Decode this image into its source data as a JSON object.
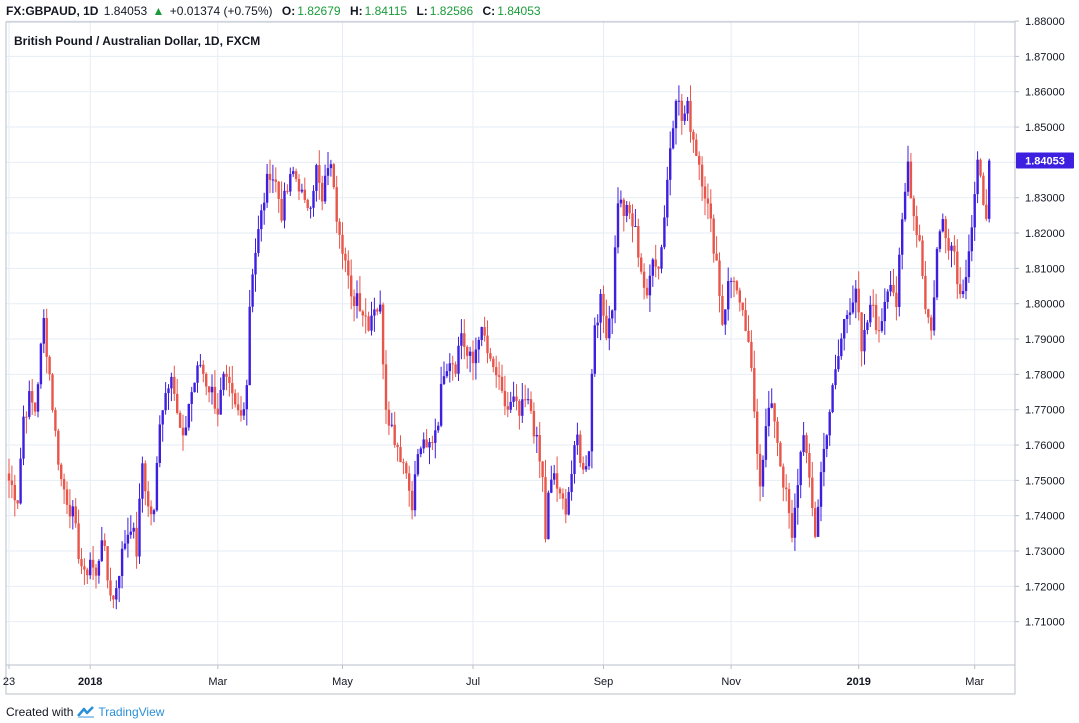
{
  "header": {
    "symbol": "FX:GBPAUD, 1D",
    "last": "1.84053",
    "change_arrow": "▲",
    "change": "+0.01374 (+0.75%)",
    "o_label": "O:",
    "o_value": "1.82679",
    "h_label": "H:",
    "h_value": "1.84115",
    "l_label": "L:",
    "l_value": "1.82586",
    "c_label": "C:",
    "c_value": "1.84053"
  },
  "footer": {
    "created_with": "Created with",
    "brand": "TradingView",
    "brand_icon": "tradingview-logo-icon"
  },
  "colors": {
    "up_candle": "#3d1fe0",
    "down_candle": "#e8554a",
    "grid": "#e6edf4",
    "last_price_tag": "#3d1fe0",
    "header_values": "#1a9b3a"
  },
  "chart_data": {
    "type": "candlestick",
    "title": "British Pound / Australian Dollar, 1D, FXCM",
    "ylim": [
      1.7,
      1.882
    ],
    "y_ticks": [
      "1.88000",
      "1.87000",
      "1.86000",
      "1.85000",
      "1.84000",
      "1.83000",
      "1.82000",
      "1.81000",
      "1.80000",
      "1.79000",
      "1.78000",
      "1.77000",
      "1.76000",
      "1.75000",
      "1.74000",
      "1.73000",
      "1.72000",
      "1.71000"
    ],
    "x_ticks": [
      {
        "label": "23",
        "bold": false,
        "bar": 0
      },
      {
        "label": "2018",
        "bold": true,
        "bar": 28
      },
      {
        "label": "Mar",
        "bold": false,
        "bar": 72
      },
      {
        "label": "May",
        "bold": false,
        "bar": 115
      },
      {
        "label": "Jul",
        "bold": false,
        "bar": 160
      },
      {
        "label": "Sep",
        "bold": false,
        "bar": 205
      },
      {
        "label": "Nov",
        "bold": false,
        "bar": 249
      },
      {
        "label": "2019",
        "bold": true,
        "bar": 293
      },
      {
        "label": "Mar",
        "bold": false,
        "bar": 333
      }
    ],
    "last_price": "1.84053",
    "grid": true,
    "close_path": [
      [
        0,
        1.75
      ],
      [
        3,
        1.745
      ],
      [
        5,
        1.768
      ],
      [
        7,
        1.773
      ],
      [
        9,
        1.77
      ],
      [
        11,
        1.787
      ],
      [
        12,
        1.795
      ],
      [
        14,
        1.78
      ],
      [
        16,
        1.763
      ],
      [
        18,
        1.75
      ],
      [
        20,
        1.745
      ],
      [
        22,
        1.74
      ],
      [
        24,
        1.73
      ],
      [
        26,
        1.722
      ],
      [
        28,
        1.728
      ],
      [
        30,
        1.722
      ],
      [
        32,
        1.735
      ],
      [
        34,
        1.722
      ],
      [
        36,
        1.716
      ],
      [
        38,
        1.725
      ],
      [
        40,
        1.733
      ],
      [
        42,
        1.738
      ],
      [
        44,
        1.73
      ],
      [
        46,
        1.755
      ],
      [
        48,
        1.742
      ],
      [
        50,
        1.74
      ],
      [
        52,
        1.768
      ],
      [
        54,
        1.775
      ],
      [
        56,
        1.782
      ],
      [
        58,
        1.768
      ],
      [
        60,
        1.76
      ],
      [
        62,
        1.772
      ],
      [
        64,
        1.778
      ],
      [
        66,
        1.783
      ],
      [
        68,
        1.778
      ],
      [
        70,
        1.775
      ],
      [
        72,
        1.77
      ],
      [
        74,
        1.778
      ],
      [
        76,
        1.775
      ],
      [
        78,
        1.77
      ],
      [
        80,
        1.768
      ],
      [
        82,
        1.778
      ],
      [
        83,
        1.8
      ],
      [
        84,
        1.81
      ],
      [
        86,
        1.82
      ],
      [
        88,
        1.83
      ],
      [
        90,
        1.838
      ],
      [
        92,
        1.834
      ],
      [
        94,
        1.826
      ],
      [
        96,
        1.832
      ],
      [
        98,
        1.837
      ],
      [
        100,
        1.834
      ],
      [
        102,
        1.827
      ],
      [
        104,
        1.83
      ],
      [
        106,
        1.838
      ],
      [
        108,
        1.828
      ],
      [
        110,
        1.84
      ],
      [
        112,
        1.835
      ],
      [
        113,
        1.826
      ],
      [
        114,
        1.822
      ],
      [
        116,
        1.812
      ],
      [
        118,
        1.8
      ],
      [
        120,
        1.803
      ],
      [
        122,
        1.798
      ],
      [
        124,
        1.795
      ],
      [
        126,
        1.8
      ],
      [
        128,
        1.798
      ],
      [
        130,
        1.772
      ],
      [
        132,
        1.765
      ],
      [
        134,
        1.76
      ],
      [
        136,
        1.755
      ],
      [
        138,
        1.75
      ],
      [
        139,
        1.74
      ],
      [
        140,
        1.752
      ],
      [
        142,
        1.76
      ],
      [
        144,
        1.758
      ],
      [
        146,
        1.762
      ],
      [
        148,
        1.768
      ],
      [
        150,
        1.782
      ],
      [
        152,
        1.785
      ],
      [
        154,
        1.783
      ],
      [
        156,
        1.792
      ],
      [
        158,
        1.785
      ],
      [
        160,
        1.783
      ],
      [
        162,
        1.792
      ],
      [
        164,
        1.79
      ],
      [
        166,
        1.782
      ],
      [
        168,
        1.78
      ],
      [
        170,
        1.773
      ],
      [
        172,
        1.77
      ],
      [
        174,
        1.772
      ],
      [
        176,
        1.768
      ],
      [
        178,
        1.772
      ],
      [
        180,
        1.77
      ],
      [
        182,
        1.76
      ],
      [
        184,
        1.75
      ],
      [
        185,
        1.734
      ],
      [
        186,
        1.745
      ],
      [
        188,
        1.752
      ],
      [
        190,
        1.744
      ],
      [
        192,
        1.743
      ],
      [
        194,
        1.752
      ],
      [
        196,
        1.762
      ],
      [
        198,
        1.752
      ],
      [
        200,
        1.76
      ],
      [
        201,
        1.78
      ],
      [
        202,
        1.795
      ],
      [
        204,
        1.8
      ],
      [
        206,
        1.793
      ],
      [
        208,
        1.8
      ],
      [
        210,
        1.83
      ],
      [
        212,
        1.826
      ],
      [
        214,
        1.825
      ],
      [
        216,
        1.82
      ],
      [
        218,
        1.81
      ],
      [
        220,
        1.8
      ],
      [
        222,
        1.815
      ],
      [
        224,
        1.81
      ],
      [
        226,
        1.825
      ],
      [
        228,
        1.845
      ],
      [
        230,
        1.86
      ],
      [
        232,
        1.852
      ],
      [
        234,
        1.855
      ],
      [
        236,
        1.847
      ],
      [
        238,
        1.84
      ],
      [
        240,
        1.832
      ],
      [
        242,
        1.822
      ],
      [
        244,
        1.812
      ],
      [
        246,
        1.795
      ],
      [
        247,
        1.8
      ],
      [
        248,
        1.805
      ],
      [
        250,
        1.808
      ],
      [
        252,
        1.798
      ],
      [
        254,
        1.793
      ],
      [
        256,
        1.78
      ],
      [
        258,
        1.76
      ],
      [
        259,
        1.75
      ],
      [
        260,
        1.758
      ],
      [
        262,
        1.77
      ],
      [
        264,
        1.768
      ],
      [
        266,
        1.755
      ],
      [
        268,
        1.745
      ],
      [
        269,
        1.74
      ],
      [
        270,
        1.732
      ],
      [
        272,
        1.75
      ],
      [
        274,
        1.765
      ],
      [
        276,
        1.748
      ],
      [
        278,
        1.735
      ],
      [
        280,
        1.752
      ],
      [
        282,
        1.765
      ],
      [
        284,
        1.775
      ],
      [
        286,
        1.785
      ],
      [
        288,
        1.795
      ],
      [
        290,
        1.8
      ],
      [
        292,
        1.805
      ],
      [
        294,
        1.785
      ],
      [
        296,
        1.795
      ],
      [
        298,
        1.8
      ],
      [
        300,
        1.79
      ],
      [
        302,
        1.802
      ],
      [
        304,
        1.808
      ],
      [
        306,
        1.8
      ],
      [
        308,
        1.822
      ],
      [
        310,
        1.84
      ],
      [
        312,
        1.825
      ],
      [
        314,
        1.818
      ],
      [
        316,
        1.8
      ],
      [
        318,
        1.792
      ],
      [
        320,
        1.815
      ],
      [
        322,
        1.824
      ],
      [
        324,
        1.818
      ],
      [
        326,
        1.815
      ],
      [
        328,
        1.802
      ],
      [
        330,
        1.81
      ],
      [
        332,
        1.822
      ],
      [
        334,
        1.838
      ],
      [
        336,
        1.83
      ],
      [
        337,
        1.827
      ],
      [
        338,
        1.8405
      ]
    ]
  }
}
